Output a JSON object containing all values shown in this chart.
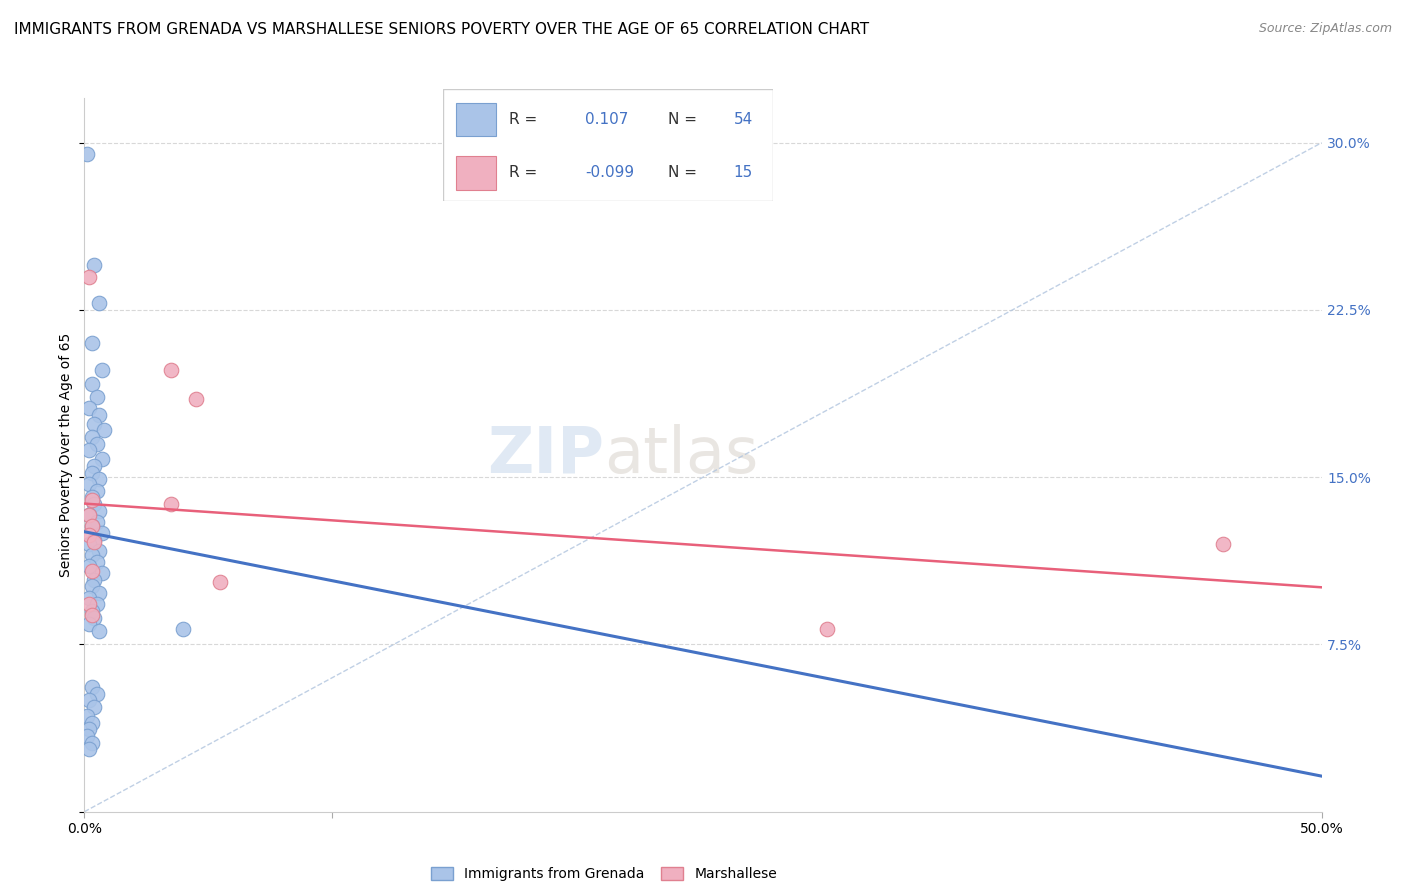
{
  "title": "IMMIGRANTS FROM GRENADA VS MARSHALLESE SENIORS POVERTY OVER THE AGE OF 65 CORRELATION CHART",
  "source": "Source: ZipAtlas.com",
  "ylabel": "Seniors Poverty Over the Age of 65",
  "ytick_values": [
    0,
    0.075,
    0.15,
    0.225,
    0.3
  ],
  "xlim": [
    0,
    0.5
  ],
  "ylim": [
    0,
    0.32
  ],
  "r_blue": 0.107,
  "n_blue": 54,
  "r_pink": -0.099,
  "n_pink": 15,
  "watermark_zip": "ZIP",
  "watermark_atlas": "atlas",
  "blue_scatter": [
    [
      0.001,
      0.295
    ],
    [
      0.004,
      0.245
    ],
    [
      0.006,
      0.228
    ],
    [
      0.003,
      0.21
    ],
    [
      0.007,
      0.198
    ],
    [
      0.003,
      0.192
    ],
    [
      0.005,
      0.186
    ],
    [
      0.002,
      0.181
    ],
    [
      0.006,
      0.178
    ],
    [
      0.004,
      0.174
    ],
    [
      0.008,
      0.171
    ],
    [
      0.003,
      0.168
    ],
    [
      0.005,
      0.165
    ],
    [
      0.002,
      0.162
    ],
    [
      0.007,
      0.158
    ],
    [
      0.004,
      0.155
    ],
    [
      0.003,
      0.152
    ],
    [
      0.006,
      0.149
    ],
    [
      0.002,
      0.147
    ],
    [
      0.005,
      0.144
    ],
    [
      0.003,
      0.141
    ],
    [
      0.004,
      0.138
    ],
    [
      0.006,
      0.135
    ],
    [
      0.002,
      0.133
    ],
    [
      0.005,
      0.13
    ],
    [
      0.003,
      0.128
    ],
    [
      0.007,
      0.125
    ],
    [
      0.004,
      0.122
    ],
    [
      0.002,
      0.12
    ],
    [
      0.006,
      0.117
    ],
    [
      0.003,
      0.115
    ],
    [
      0.005,
      0.112
    ],
    [
      0.002,
      0.11
    ],
    [
      0.007,
      0.107
    ],
    [
      0.004,
      0.104
    ],
    [
      0.003,
      0.101
    ],
    [
      0.006,
      0.098
    ],
    [
      0.002,
      0.096
    ],
    [
      0.005,
      0.093
    ],
    [
      0.003,
      0.09
    ],
    [
      0.004,
      0.087
    ],
    [
      0.002,
      0.084
    ],
    [
      0.006,
      0.081
    ],
    [
      0.003,
      0.056
    ],
    [
      0.005,
      0.053
    ],
    [
      0.002,
      0.05
    ],
    [
      0.004,
      0.047
    ],
    [
      0.001,
      0.043
    ],
    [
      0.003,
      0.04
    ],
    [
      0.002,
      0.037
    ],
    [
      0.001,
      0.034
    ],
    [
      0.003,
      0.031
    ],
    [
      0.002,
      0.028
    ],
    [
      0.04,
      0.082
    ]
  ],
  "pink_scatter": [
    [
      0.002,
      0.24
    ],
    [
      0.035,
      0.198
    ],
    [
      0.045,
      0.185
    ],
    [
      0.003,
      0.14
    ],
    [
      0.035,
      0.138
    ],
    [
      0.002,
      0.133
    ],
    [
      0.003,
      0.128
    ],
    [
      0.002,
      0.124
    ],
    [
      0.004,
      0.121
    ],
    [
      0.003,
      0.108
    ],
    [
      0.055,
      0.103
    ],
    [
      0.002,
      0.093
    ],
    [
      0.003,
      0.088
    ],
    [
      0.3,
      0.082
    ],
    [
      0.46,
      0.12
    ]
  ],
  "blue_line_color": "#4472c4",
  "pink_line_color": "#e8607a",
  "dash_line_color": "#b0c4de",
  "scatter_blue_face": "#aac4e8",
  "scatter_blue_edge": "#7aa0d0",
  "scatter_pink_face": "#f0b0c0",
  "scatter_pink_edge": "#e08090",
  "grid_color": "#d8d8d8",
  "title_fontsize": 11,
  "axis_label_fontsize": 10,
  "tick_fontsize": 10,
  "legend_fontsize": 11,
  "source_fontsize": 9
}
